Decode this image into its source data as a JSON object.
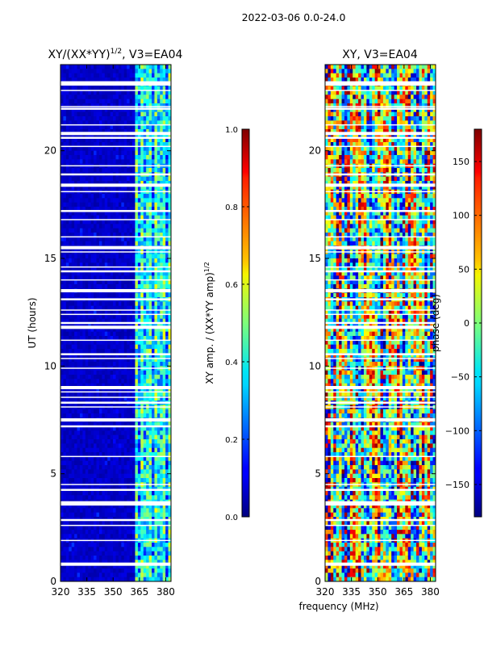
{
  "figure": {
    "suptitle": "2022-03-06 0.0-24.0"
  },
  "chart_data": [
    {
      "type": "heatmap",
      "title_main": "XY/(XX*YY)",
      "title_exp": "1/2",
      "title_tail": ", V3=EA04",
      "xlabel": "",
      "ylabel": "UT (hours)",
      "x_range_mhz": [
        320,
        383
      ],
      "y_range_hours": [
        0,
        24
      ],
      "x_ticks": [
        320,
        335,
        350,
        365,
        380
      ],
      "y_ticks": [
        0,
        5,
        10,
        15,
        20
      ],
      "colorbar": {
        "label_main": "XY amp. / (XX*YY amp)",
        "label_exp": "1/2",
        "range": [
          0.0,
          1.0
        ],
        "ticks": [
          "0.0",
          "0.2",
          "0.4",
          "0.6",
          "0.8",
          "1.0"
        ]
      },
      "note": "Low amplitude (~0.05) below ~362 MHz; mottled 0.2-0.5 band at ~362-383 MHz; white gaps mark flagged times."
    },
    {
      "type": "heatmap",
      "title_main": "XY, V3=EA04",
      "xlabel": "frequency (MHz)",
      "ylabel": "",
      "x_range_mhz": [
        320,
        383
      ],
      "y_range_hours": [
        0,
        24
      ],
      "x_ticks": [
        320,
        335,
        350,
        365,
        380
      ],
      "y_ticks": [
        0,
        5,
        10,
        15,
        20
      ],
      "colorbar": {
        "label_main": "phase (deg)",
        "range": [
          -180,
          180
        ],
        "ticks": [
          "150",
          "100",
          "50",
          "0",
          "−50",
          "−100",
          "−150"
        ]
      },
      "note": "Phase in degrees, wrapping -180..180, with vertical frequency stripes."
    }
  ],
  "flag_gaps_hours": [
    0.8,
    1.9,
    2.6,
    2.85,
    3.55,
    3.65,
    4.25,
    4.5,
    5.8,
    7.2,
    7.5,
    8.1,
    8.3,
    8.55,
    8.8,
    9.0,
    9.9,
    10.35,
    10.55,
    11.2,
    11.8,
    12.0,
    12.4,
    12.6,
    13.1,
    13.5,
    14.0,
    14.4,
    14.6,
    15.3,
    15.5,
    16.0,
    16.8,
    17.2,
    18.1,
    18.4,
    18.9,
    19.3,
    20.2,
    20.6,
    20.8,
    21.2,
    21.95,
    22.05,
    22.8,
    23.1,
    23.2
  ]
}
